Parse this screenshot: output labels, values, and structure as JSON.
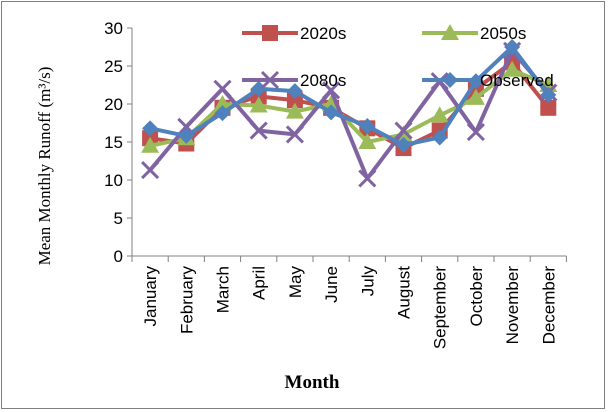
{
  "chart_data": {
    "type": "line",
    "title": "",
    "xlabel": "Month",
    "ylabel": "Mean Monthly Runoff (m³/s)",
    "ylim": [
      0,
      30
    ],
    "yticks": [
      "0",
      "5",
      "10",
      "15",
      "20",
      "25",
      "30"
    ],
    "grid": false,
    "legend_position": "top",
    "categories": [
      "January",
      "February",
      "March",
      "April",
      "May",
      "June",
      "July",
      "August",
      "September",
      "October",
      "November",
      "December"
    ],
    "series": [
      {
        "name": "2020s",
        "color": "#c0504d",
        "marker": "square",
        "values": [
          15.5,
          14.8,
          19.5,
          21.0,
          20.5,
          19.5,
          16.8,
          14.2,
          16.5,
          22.0,
          25.5,
          19.5
        ]
      },
      {
        "name": "2050s",
        "color": "#9bbb59",
        "marker": "triangle",
        "values": [
          14.5,
          15.5,
          20.0,
          19.8,
          19.0,
          20.0,
          15.0,
          16.0,
          18.5,
          20.8,
          24.5,
          22.5
        ]
      },
      {
        "name": "2080s",
        "color": "#8064a2",
        "marker": "x",
        "values": [
          11.3,
          17.0,
          22.0,
          16.5,
          16.0,
          21.8,
          10.2,
          16.5,
          23.0,
          16.3,
          27.0,
          21.5
        ]
      },
      {
        "name": "Observed",
        "color": "#4f81bd",
        "marker": "diamond",
        "values": [
          16.8,
          15.8,
          18.8,
          22.0,
          21.7,
          18.9,
          17.1,
          14.6,
          15.6,
          23.0,
          27.5,
          21.2
        ]
      }
    ]
  }
}
